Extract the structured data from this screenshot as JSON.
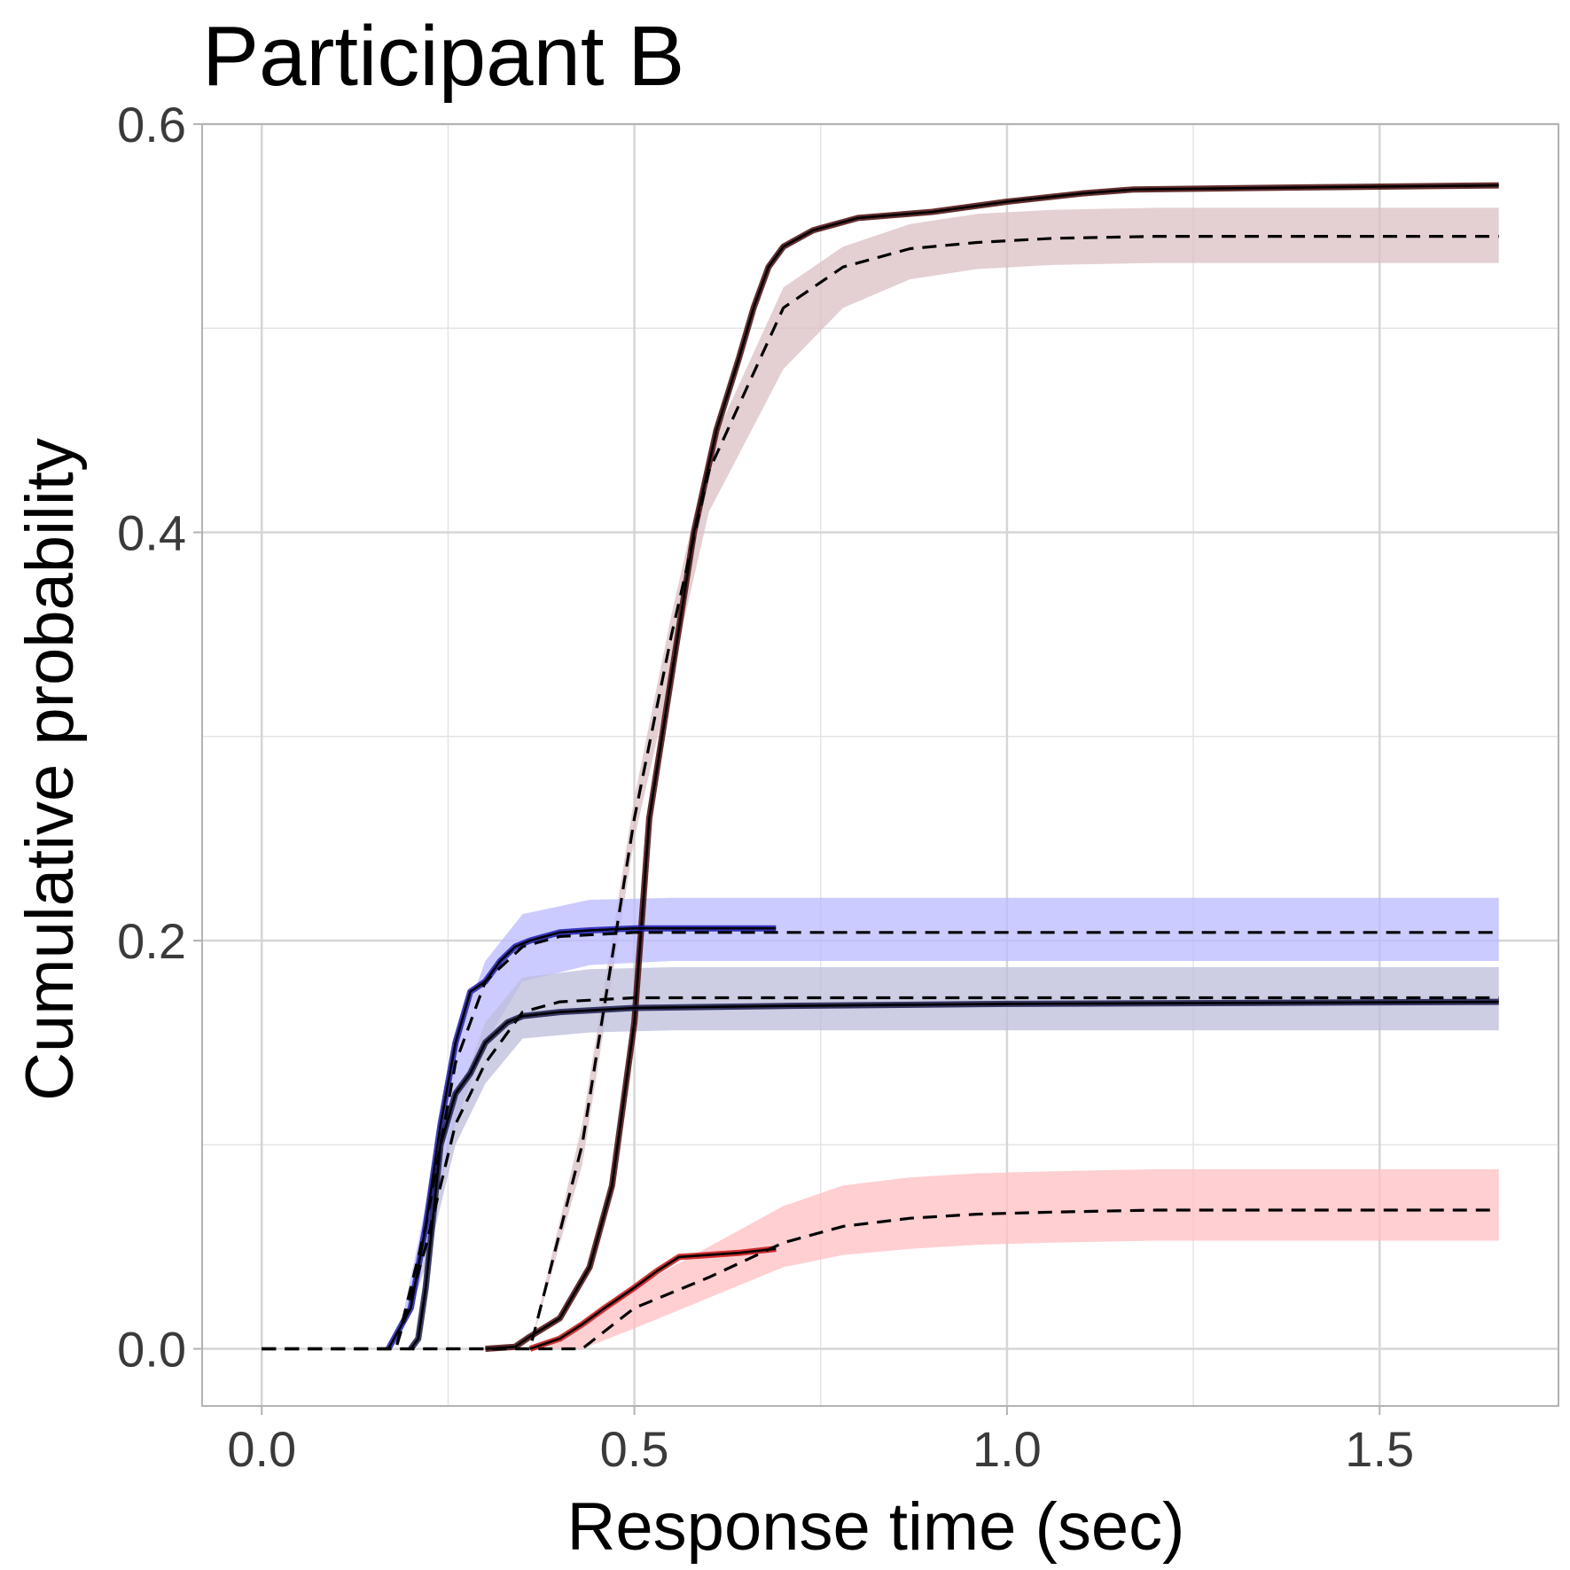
{
  "chart_data": {
    "type": "line",
    "title": "Participant B",
    "xlabel": "Response time (sec)",
    "ylabel": "Cumulative probability",
    "xlim": [
      -0.08,
      1.74
    ],
    "ylim": [
      -0.028,
      0.6
    ],
    "x_ticks": [
      0.0,
      0.5,
      1.0,
      1.5
    ],
    "x_tick_labels": [
      "0.0",
      "0.5",
      "1.0",
      "1.5"
    ],
    "y_ticks": [
      0.0,
      0.2,
      0.4,
      0.6
    ],
    "y_tick_labels": [
      "0.0",
      "0.2",
      "0.4",
      "0.6"
    ],
    "grid": true,
    "legend": "none",
    "colors": {
      "dark_red": "#4a0a0a",
      "dark_red_band": "#dbbfc3",
      "blue": "#1c1cb0",
      "blue_band": "#babaff",
      "navy": "#1b1b4d",
      "navy_band": "#bcbddb",
      "red": "#c81010",
      "red_band": "#ffbfc3",
      "model": "#000000"
    },
    "bands": [
      {
        "color_key": "dark_red_band",
        "x": [
          0.36,
          0.43,
          0.5,
          0.55,
          0.6,
          0.7,
          0.78,
          0.87,
          0.96,
          1.06,
          1.2,
          1.4,
          1.66
        ],
        "lower": [
          0.0,
          0.09,
          0.25,
          0.33,
          0.41,
          0.48,
          0.51,
          0.524,
          0.529,
          0.531,
          0.532,
          0.532,
          0.532
        ],
        "upper": [
          0.0,
          0.11,
          0.27,
          0.36,
          0.44,
          0.52,
          0.54,
          0.551,
          0.556,
          0.558,
          0.559,
          0.559,
          0.559
        ]
      },
      {
        "color_key": "blue_band",
        "x": [
          0.18,
          0.22,
          0.26,
          0.3,
          0.35,
          0.44,
          0.55,
          0.7,
          1.0,
          1.66
        ],
        "lower": [
          0.0,
          0.05,
          0.11,
          0.15,
          0.18,
          0.188,
          0.19,
          0.19,
          0.19,
          0.19
        ],
        "upper": [
          0.0,
          0.07,
          0.15,
          0.19,
          0.213,
          0.22,
          0.221,
          0.221,
          0.221,
          0.221
        ]
      },
      {
        "color_key": "navy_band",
        "x": [
          0.18,
          0.22,
          0.26,
          0.3,
          0.35,
          0.44,
          0.55,
          0.7,
          1.0,
          1.66
        ],
        "lower": [
          0.0,
          0.04,
          0.1,
          0.13,
          0.152,
          0.155,
          0.156,
          0.156,
          0.156,
          0.156
        ],
        "upper": [
          0.0,
          0.05,
          0.12,
          0.16,
          0.182,
          0.186,
          0.187,
          0.187,
          0.187,
          0.187
        ]
      },
      {
        "color_key": "red_band",
        "x": [
          0.38,
          0.43,
          0.5,
          0.6,
          0.7,
          0.78,
          0.87,
          0.96,
          1.06,
          1.2,
          1.4,
          1.66
        ],
        "lower": [
          0.0,
          0.0,
          0.01,
          0.025,
          0.04,
          0.046,
          0.049,
          0.051,
          0.052,
          0.053,
          0.053,
          0.053
        ],
        "upper": [
          0.0,
          0.01,
          0.03,
          0.05,
          0.07,
          0.08,
          0.084,
          0.086,
          0.087,
          0.088,
          0.088,
          0.088
        ]
      }
    ],
    "series": [
      {
        "style": "solid",
        "color_key": "dark_red",
        "x": [
          0.3,
          0.34,
          0.36,
          0.4,
          0.44,
          0.47,
          0.5,
          0.52,
          0.55,
          0.58,
          0.61,
          0.64,
          0.66,
          0.68,
          0.7,
          0.74,
          0.8,
          0.9,
          1.0,
          1.1,
          1.17,
          1.4,
          1.66
        ],
        "y": [
          0.0,
          0.001,
          0.006,
          0.015,
          0.04,
          0.08,
          0.16,
          0.26,
          0.33,
          0.4,
          0.45,
          0.485,
          0.51,
          0.53,
          0.54,
          0.548,
          0.554,
          0.557,
          0.562,
          0.566,
          0.568,
          0.569,
          0.57
        ]
      },
      {
        "style": "solid",
        "color_key": "blue",
        "x": [
          0.17,
          0.2,
          0.22,
          0.24,
          0.26,
          0.28,
          0.3,
          0.32,
          0.34,
          0.36,
          0.4,
          0.44,
          0.5,
          0.6,
          0.69
        ],
        "y": [
          0.0,
          0.02,
          0.06,
          0.11,
          0.15,
          0.175,
          0.18,
          0.19,
          0.197,
          0.2,
          0.204,
          0.205,
          0.206,
          0.206,
          0.206
        ]
      },
      {
        "style": "solid",
        "color_key": "navy",
        "x": [
          0.2,
          0.21,
          0.22,
          0.24,
          0.26,
          0.28,
          0.3,
          0.33,
          0.35,
          0.4,
          0.5,
          0.7,
          1.0,
          1.66
        ],
        "y": [
          0.0,
          0.005,
          0.03,
          0.1,
          0.125,
          0.135,
          0.15,
          0.16,
          0.163,
          0.165,
          0.167,
          0.168,
          0.169,
          0.17
        ]
      },
      {
        "style": "solid",
        "color_key": "red",
        "x": [
          0.36,
          0.4,
          0.43,
          0.46,
          0.5,
          0.53,
          0.56,
          0.6,
          0.64,
          0.69
        ],
        "y": [
          0.0,
          0.005,
          0.012,
          0.02,
          0.03,
          0.038,
          0.045,
          0.046,
          0.047,
          0.049
        ]
      },
      {
        "style": "dashed",
        "color_key": "model",
        "x": [
          0.0,
          0.36,
          0.43,
          0.5,
          0.55,
          0.6,
          0.7,
          0.78,
          0.87,
          0.96,
          1.06,
          1.2,
          1.4,
          1.66
        ],
        "y": [
          0.0,
          0.0,
          0.1,
          0.26,
          0.35,
          0.43,
          0.51,
          0.53,
          0.539,
          0.542,
          0.544,
          0.545,
          0.545,
          0.545
        ]
      },
      {
        "style": "dashed",
        "color_key": "model",
        "x": [
          0.0,
          0.18,
          0.22,
          0.26,
          0.3,
          0.35,
          0.4,
          0.5,
          0.7,
          1.0,
          1.66
        ],
        "y": [
          0.0,
          0.0,
          0.06,
          0.14,
          0.18,
          0.197,
          0.202,
          0.204,
          0.204,
          0.204,
          0.204
        ]
      },
      {
        "style": "dashed",
        "color_key": "model",
        "x": [
          0.0,
          0.18,
          0.22,
          0.26,
          0.3,
          0.35,
          0.4,
          0.5,
          0.7,
          1.0,
          1.66
        ],
        "y": [
          0.0,
          0.0,
          0.05,
          0.11,
          0.14,
          0.165,
          0.17,
          0.172,
          0.172,
          0.172,
          0.172
        ]
      },
      {
        "style": "dashed",
        "color_key": "model",
        "x": [
          0.0,
          0.43,
          0.5,
          0.6,
          0.7,
          0.78,
          0.87,
          0.96,
          1.06,
          1.2,
          1.4,
          1.66
        ],
        "y": [
          0.0,
          0.0,
          0.02,
          0.035,
          0.052,
          0.06,
          0.064,
          0.066,
          0.067,
          0.068,
          0.068,
          0.068
        ]
      }
    ]
  }
}
